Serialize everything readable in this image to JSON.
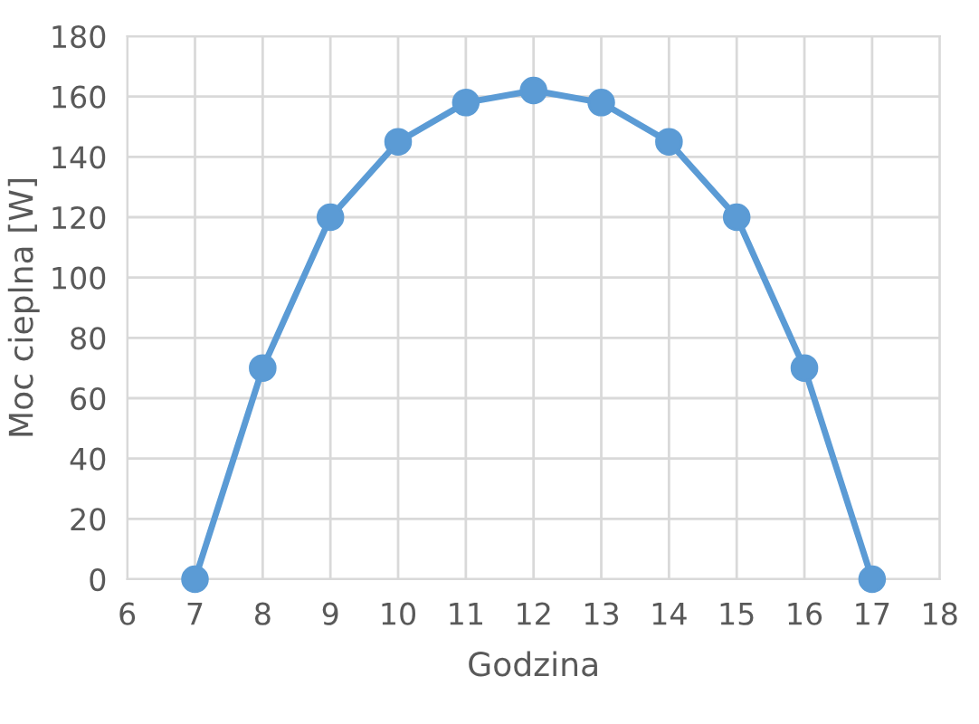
{
  "chart_data": {
    "type": "line",
    "xlabel": "Godzina",
    "ylabel": "Moc cieplna [W]",
    "x": [
      7,
      8,
      9,
      10,
      11,
      12,
      13,
      14,
      15,
      16,
      17
    ],
    "series": [
      {
        "color": "#5b9bd5",
        "values": [
          0,
          70,
          120,
          145,
          158,
          162,
          158,
          145,
          120,
          70,
          0
        ]
      }
    ],
    "xlim": [
      6,
      18
    ],
    "xticks": [
      6,
      7,
      8,
      9,
      10,
      11,
      12,
      13,
      14,
      15,
      16,
      17,
      18
    ],
    "ylim": [
      0,
      180
    ],
    "yticks": [
      0,
      20,
      40,
      60,
      80,
      100,
      120,
      140,
      160,
      180
    ],
    "grid": true,
    "marker": "circle",
    "line_style": "solid"
  }
}
